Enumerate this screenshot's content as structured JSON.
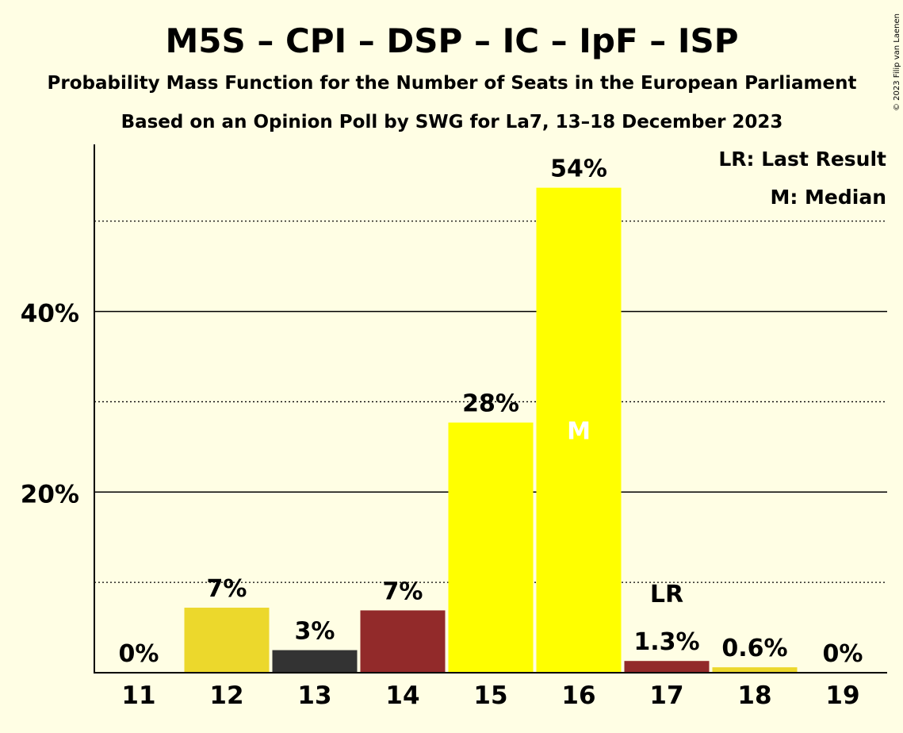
{
  "chart_data": {
    "type": "bar",
    "title": "M5S – CPI – DSP – IC – IpF – ISP",
    "subtitle1": "Probability Mass Function for the Number of Seats in the European Parliament",
    "subtitle2": "Based on an Opinion Poll by SWG for La7, 13–18 December 2023",
    "categories": [
      "11",
      "12",
      "13",
      "14",
      "15",
      "16",
      "17",
      "18",
      "19"
    ],
    "values": [
      0,
      7.2,
      2.5,
      6.9,
      27.7,
      53.7,
      1.3,
      0.6,
      0
    ],
    "value_labels": [
      "0%",
      "7%",
      "3%",
      "7%",
      "28%",
      "54%",
      "1.3%",
      "0.6%",
      "0%"
    ],
    "bar_colors": [
      "#ECD82C",
      "#ECD82C",
      "#333333",
      "#922A2A",
      "#FFFF00",
      "#FFFF00",
      "#922A2A",
      "#ECD82C",
      "#ECD82C"
    ],
    "ylim": [
      0,
      58.5
    ],
    "y_ticks": [
      {
        "value": 20,
        "label": "20%"
      },
      {
        "value": 40,
        "label": "40%"
      }
    ],
    "y_minor_ticks": [
      10,
      30,
      50
    ],
    "median_category": "16",
    "median_marker": "M",
    "last_result_category": "17",
    "last_result_marker": "LR",
    "legend": [
      "LR: Last Result",
      "M: Median"
    ],
    "copyright": "© 2023 Filip van Laenen"
  }
}
